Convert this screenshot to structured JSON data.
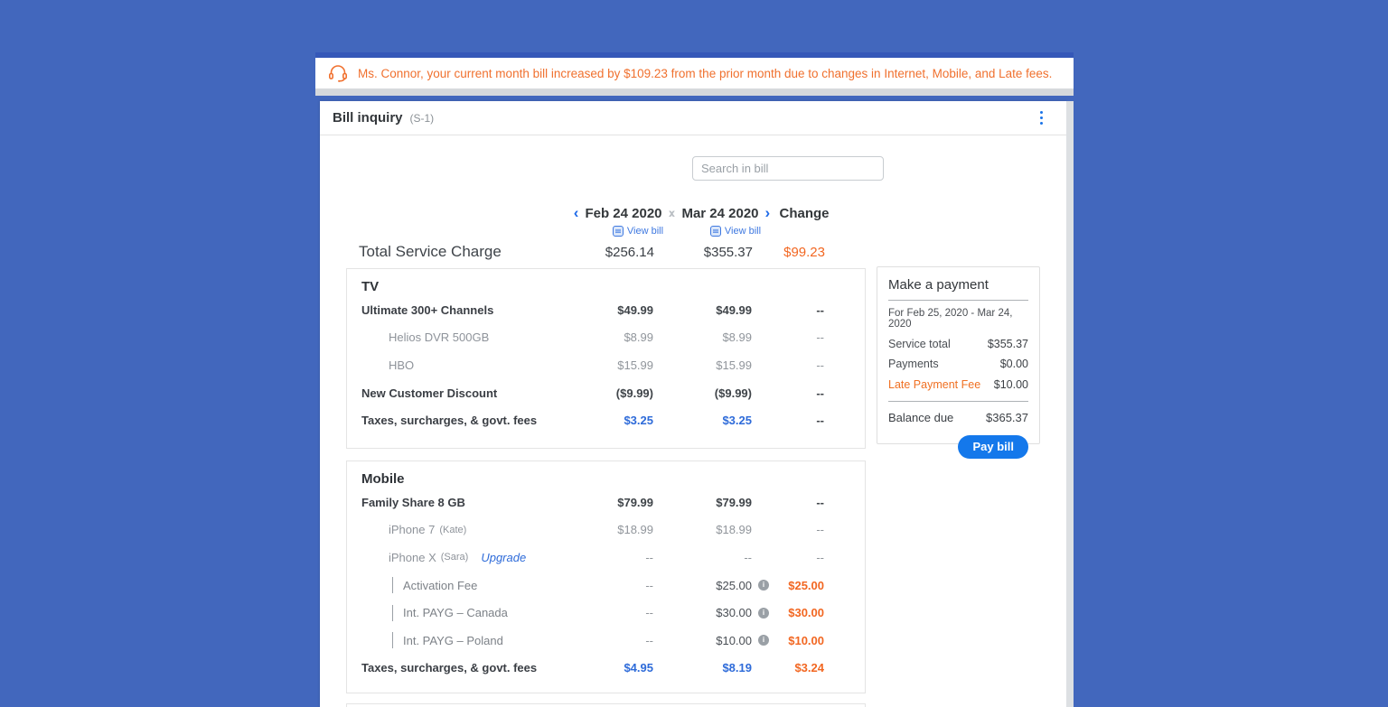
{
  "colors": {
    "background": "#4267BD",
    "alert_accent": "#3558B8",
    "alert_text": "#F0702E",
    "link_blue": "#2E6BD9",
    "action_blue": "#1478EB",
    "delta_orange": "#F26722",
    "scroll_track": "#DDE0E3"
  },
  "alert": {
    "icon": "headset-icon",
    "text": "Ms. Connor, your current month bill increased by $109.23 from the prior month due to changes in Internet, Mobile, and Late fees."
  },
  "header": {
    "title": "Bill inquiry",
    "code": "(S-1)",
    "menu_icon": "kebab-menu-icon"
  },
  "search": {
    "placeholder": "Search in bill"
  },
  "columns": {
    "col1": {
      "label": "Feb 24 2020",
      "view_bill": "View bill"
    },
    "col2": {
      "label": "Mar 24 2020",
      "view_bill": "View bill"
    },
    "change": "Change"
  },
  "total": {
    "label": "Total Service Charge",
    "c1": "$256.14",
    "c2": "$355.37",
    "ch": "$99.23"
  },
  "sections": [
    {
      "title": "TV",
      "rows": [
        {
          "label": "Ultimate 300+ Channels",
          "style": "plan",
          "c1": "$49.99",
          "c2": "$49.99",
          "ch": "--"
        },
        {
          "label": "Helios DVR 500GB",
          "style": "sub",
          "c1": "$8.99",
          "c2": "$8.99",
          "ch": "--"
        },
        {
          "label": "HBO",
          "style": "sub",
          "c1": "$15.99",
          "c2": "$15.99",
          "ch": "--"
        },
        {
          "label": "New Customer Discount",
          "style": "plan",
          "c1": "($9.99)",
          "c2": "($9.99)",
          "ch": "--"
        },
        {
          "label": "Taxes, surcharges, & govt. fees",
          "style": "tax",
          "c1": "$3.25",
          "c1_style": "link",
          "c2": "$3.25",
          "c2_style": "link",
          "ch": "--"
        }
      ]
    },
    {
      "title": "Mobile",
      "rows": [
        {
          "label": "Family Share 8 GB",
          "style": "plan",
          "c1": "$79.99",
          "c2": "$79.99",
          "ch": "--"
        },
        {
          "label": "iPhone 7",
          "note": "(Kate)",
          "style": "sub",
          "c1": "$18.99",
          "c2": "$18.99",
          "ch": "--"
        },
        {
          "label": "iPhone X",
          "note": "(Sara)",
          "link": "Upgrade",
          "style": "sub",
          "c1": "--",
          "c2": "--",
          "ch": "--"
        },
        {
          "label": "Activation Fee",
          "style": "fee",
          "c1": "--",
          "c2": "$25.00",
          "c2_info": true,
          "ch": "$25.00",
          "ch_style": "delta"
        },
        {
          "label": "Int. PAYG – Canada",
          "style": "fee",
          "c1": "--",
          "c2": "$30.00",
          "c2_info": true,
          "ch": "$30.00",
          "ch_style": "delta"
        },
        {
          "label": "Int. PAYG – Poland",
          "style": "fee",
          "c1": "--",
          "c2": "$10.00",
          "c2_info": true,
          "ch": "$10.00",
          "ch_style": "delta"
        },
        {
          "label": "Taxes, surcharges, & govt. fees",
          "style": "tax",
          "c1": "$4.95",
          "c1_style": "link",
          "c2": "$8.19",
          "c2_style": "link",
          "ch": "$3.24",
          "ch_style": "delta"
        }
      ]
    }
  ],
  "payment": {
    "title": "Make a payment",
    "period": "For Feb 25, 2020 - Mar 24, 2020",
    "rows": [
      {
        "label": "Service total",
        "value": "$355.37"
      },
      {
        "label": "Payments",
        "value": "$0.00"
      },
      {
        "label": "Late Payment Fee",
        "value": "$10.00",
        "style": "orange"
      }
    ],
    "balance_label": "Balance due",
    "balance_value": "$365.37",
    "button": "Pay bill"
  }
}
